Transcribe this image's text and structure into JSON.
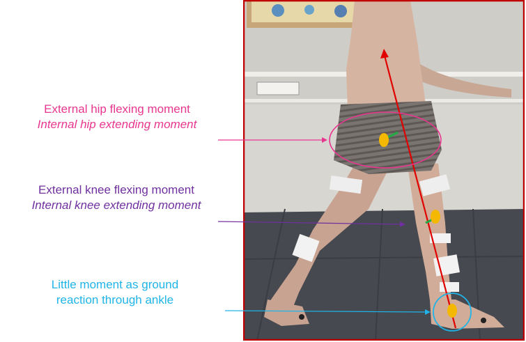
{
  "labels": {
    "hip_external": "External hip flexing moment",
    "hip_internal": "Internal hip extending moment",
    "knee_external": "External knee flexing moment",
    "knee_internal": "Internal knee extending moment",
    "ankle_line1": "Little moment as ground",
    "ankle_line2": "reaction through ankle"
  },
  "colors": {
    "hip": "#e8368f",
    "knee": "#7030a0",
    "ankle": "#1fb4e8",
    "frame": "#c00000",
    "ground_reaction_line": "#e00000",
    "joint_marker": "#f5b800",
    "moment_arm": "#22aa44"
  },
  "icons": {
    "photo": "gait-photo-walking-person",
    "joint_markers": "joint-centre-dot"
  }
}
